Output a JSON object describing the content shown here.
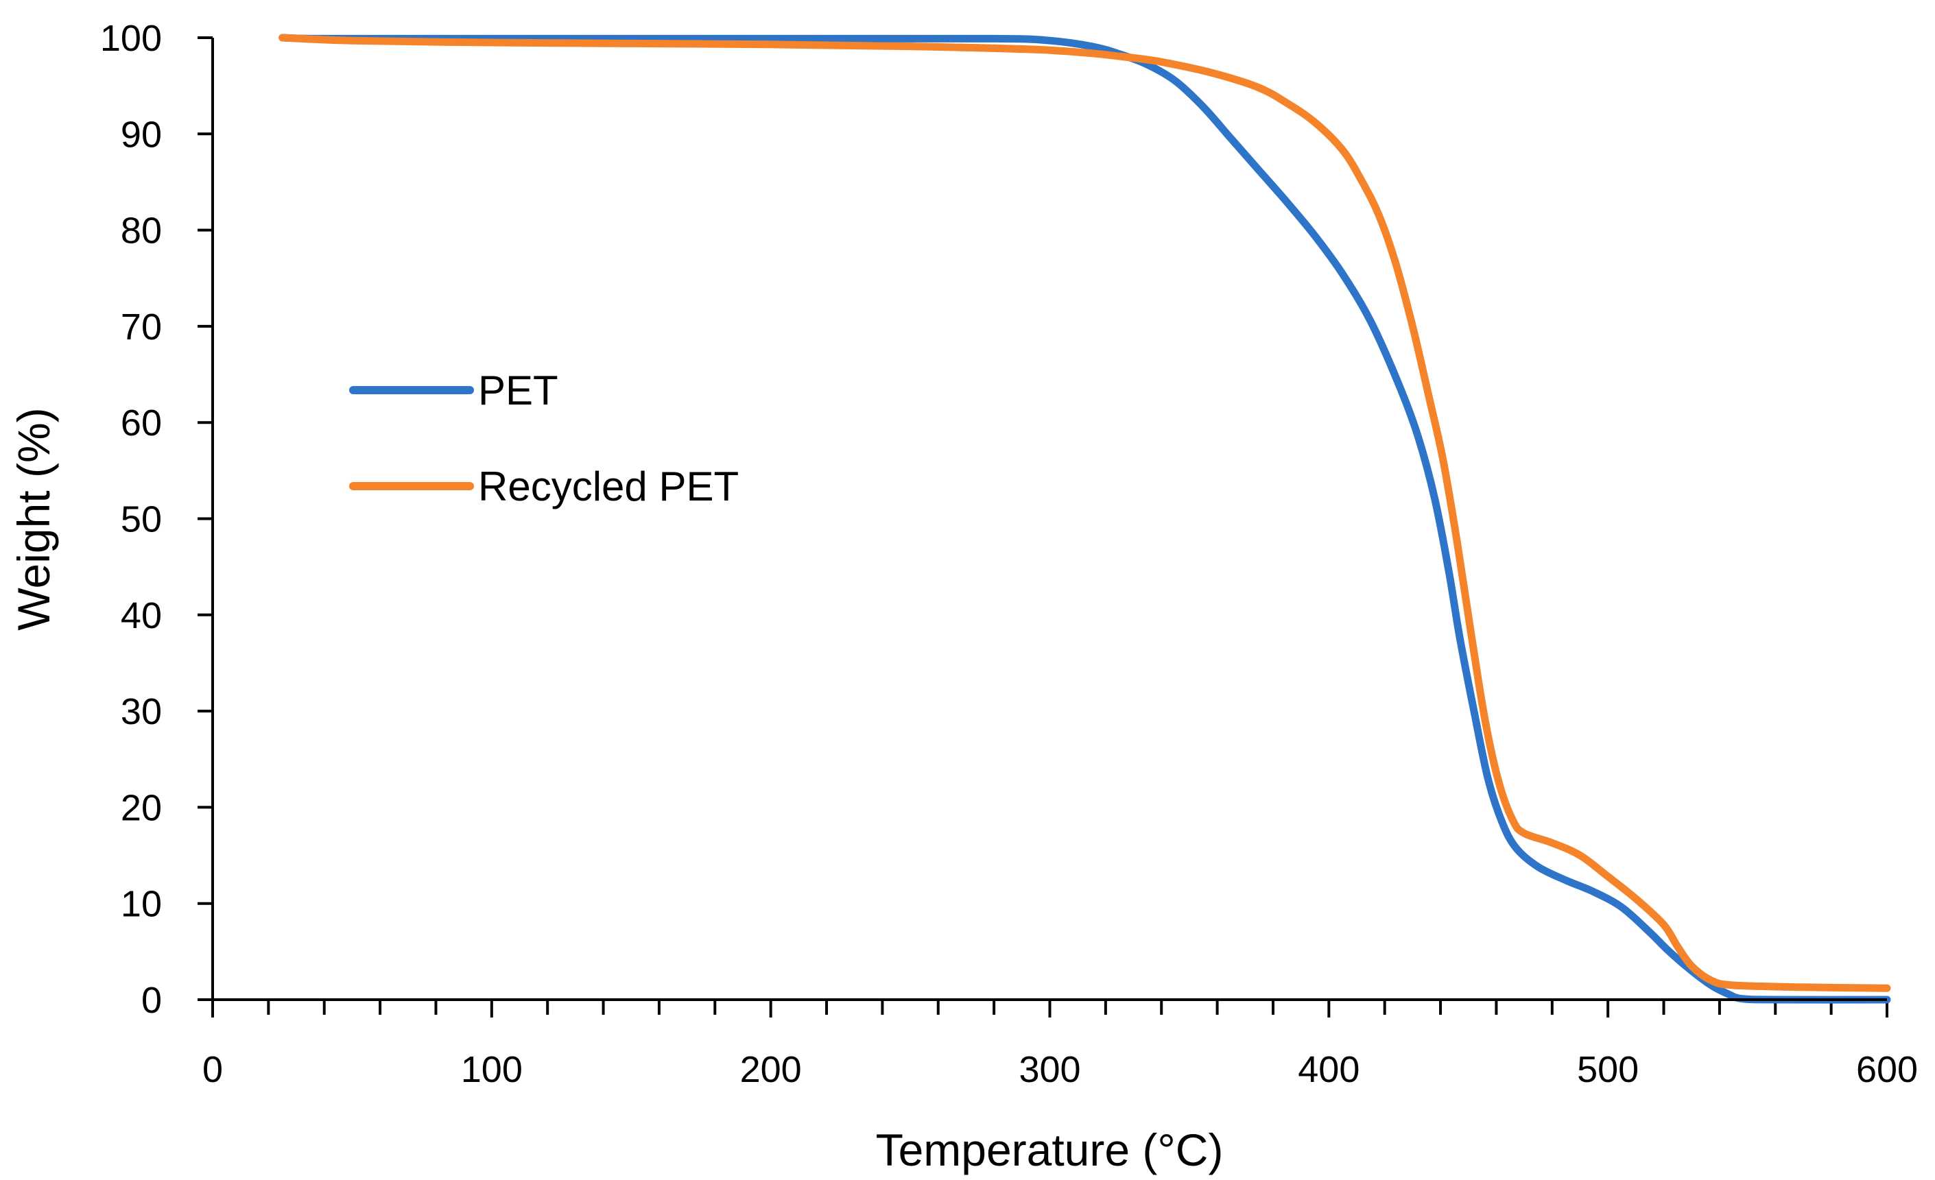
{
  "chart_data": {
    "type": "line",
    "title": "",
    "xlabel": "Temperature (°C)",
    "ylabel": "Weight (%)",
    "xlim": [
      0,
      600
    ],
    "ylim": [
      0,
      100
    ],
    "x_ticks": [
      0,
      100,
      200,
      300,
      400,
      500,
      600
    ],
    "y_ticks": [
      0,
      10,
      20,
      30,
      40,
      50,
      60,
      70,
      80,
      90,
      100
    ],
    "x_minor_step": 20,
    "grid": false,
    "legend_position": "left-middle",
    "series": [
      {
        "name": "PET",
        "color": "#2E75C9",
        "points": [
          [
            25,
            100
          ],
          [
            40,
            99.9
          ],
          [
            100,
            99.9
          ],
          [
            200,
            99.9
          ],
          [
            280,
            99.9
          ],
          [
            300,
            99.7
          ],
          [
            315,
            99.1
          ],
          [
            325,
            98.3
          ],
          [
            335,
            97.2
          ],
          [
            345,
            95.5
          ],
          [
            355,
            92.8
          ],
          [
            365,
            89.5
          ],
          [
            375,
            86.2
          ],
          [
            385,
            82.9
          ],
          [
            395,
            79.4
          ],
          [
            405,
            75.4
          ],
          [
            415,
            70.5
          ],
          [
            425,
            64.0
          ],
          [
            432,
            58.5
          ],
          [
            438,
            52.0
          ],
          [
            443,
            44.5
          ],
          [
            447,
            37.5
          ],
          [
            452,
            30.0
          ],
          [
            457,
            23.0
          ],
          [
            462,
            18.5
          ],
          [
            467,
            15.8
          ],
          [
            475,
            13.8
          ],
          [
            485,
            12.4
          ],
          [
            495,
            11.2
          ],
          [
            505,
            9.6
          ],
          [
            515,
            7.0
          ],
          [
            522,
            5.0
          ],
          [
            530,
            3.0
          ],
          [
            537,
            1.5
          ],
          [
            543,
            0.6
          ],
          [
            548,
            0.1
          ],
          [
            560,
            0.0
          ],
          [
            600,
            0.0
          ]
        ]
      },
      {
        "name": "Recycled PET",
        "color": "#F5832A",
        "points": [
          [
            25,
            100
          ],
          [
            50,
            99.7
          ],
          [
            100,
            99.5
          ],
          [
            150,
            99.4
          ],
          [
            200,
            99.3
          ],
          [
            250,
            99.1
          ],
          [
            300,
            98.7
          ],
          [
            330,
            97.9
          ],
          [
            345,
            97.2
          ],
          [
            360,
            96.2
          ],
          [
            375,
            94.8
          ],
          [
            385,
            93.2
          ],
          [
            395,
            91.2
          ],
          [
            405,
            88.3
          ],
          [
            412,
            85.0
          ],
          [
            418,
            81.5
          ],
          [
            424,
            76.5
          ],
          [
            430,
            70.0
          ],
          [
            436,
            62.5
          ],
          [
            441,
            56.0
          ],
          [
            446,
            47.5
          ],
          [
            451,
            38.0
          ],
          [
            456,
            29.0
          ],
          [
            461,
            22.5
          ],
          [
            466,
            18.6
          ],
          [
            470,
            17.3
          ],
          [
            480,
            16.3
          ],
          [
            490,
            15.0
          ],
          [
            500,
            12.8
          ],
          [
            510,
            10.5
          ],
          [
            520,
            7.8
          ],
          [
            525,
            5.5
          ],
          [
            530,
            3.5
          ],
          [
            537,
            2.0
          ],
          [
            545,
            1.5
          ],
          [
            570,
            1.3
          ],
          [
            600,
            1.2
          ]
        ]
      }
    ]
  }
}
